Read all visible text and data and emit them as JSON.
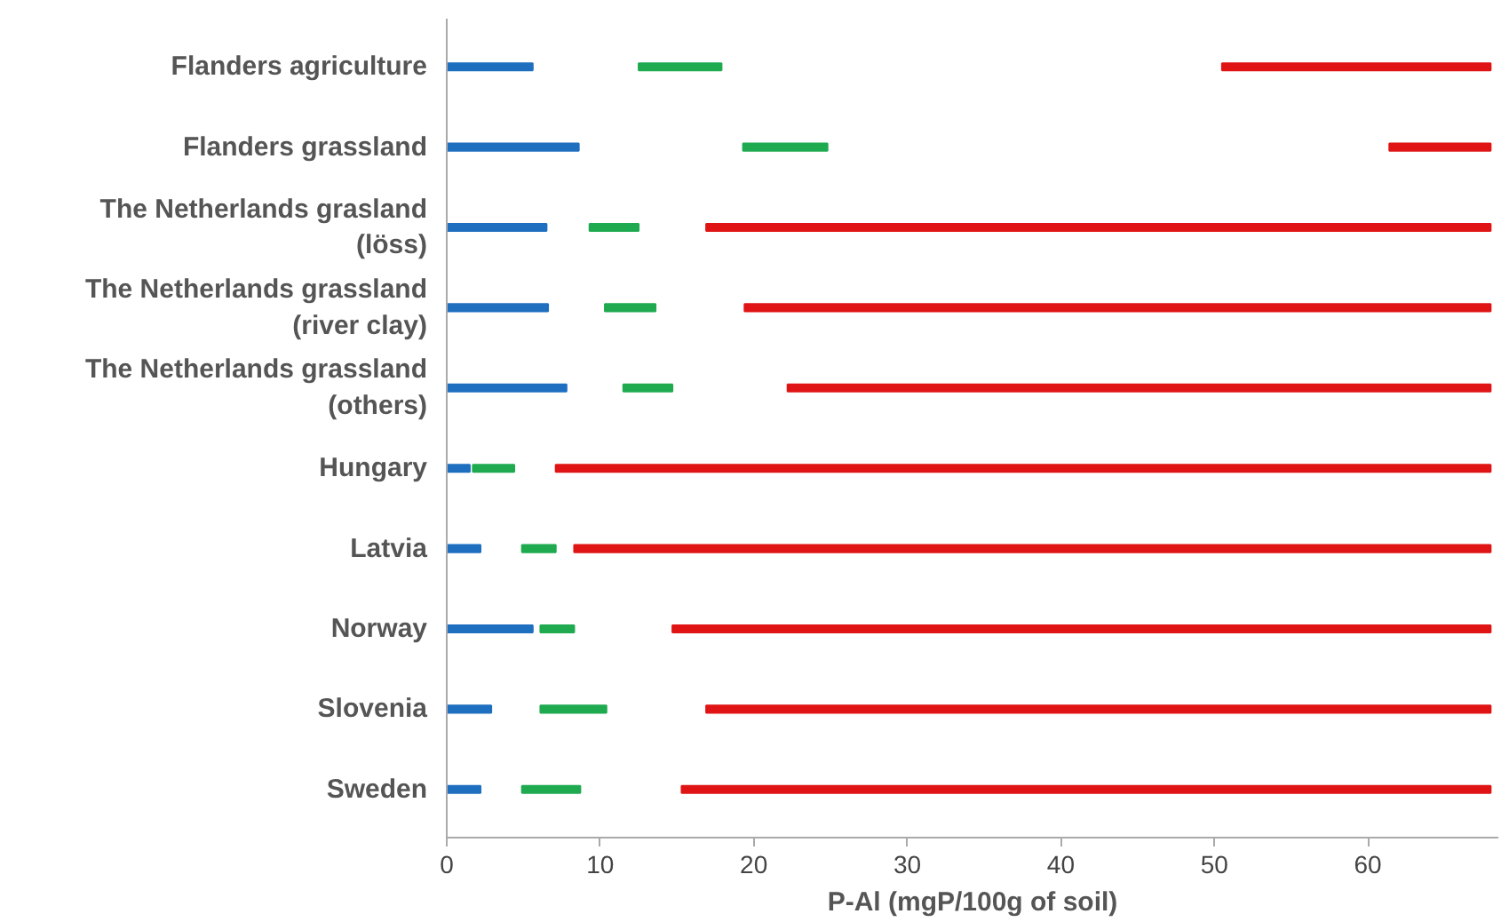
{
  "chart_data": {
    "type": "bar",
    "orientation": "horizontal",
    "xlabel": "P-Al (mgP/100g of soil)",
    "categories": [
      "Flanders agriculture",
      "Flanders grassland",
      "The Netherlands grasland\n(löss)",
      "The Netherlands grassland\n(river clay)",
      "The Netherlands grassland\n(others)",
      "Hungary",
      "Latvia",
      "Norway",
      "Slovenia",
      "Sweden"
    ],
    "series": [
      {
        "color": "#1f6fc0",
        "base": [
          0,
          0,
          0,
          0,
          0,
          0,
          0,
          0,
          0,
          0
        ],
        "values": [
          5.6,
          8.6,
          6.5,
          6.6,
          7.8,
          1.5,
          2.2,
          5.6,
          2.9,
          2.2
        ]
      },
      {
        "color": "#1faa50",
        "base": [
          12.5,
          19.3,
          9.3,
          10.3,
          11.5,
          1.7,
          4.9,
          6.1,
          6.1,
          4.9
        ],
        "values": [
          5.4,
          5.5,
          3.2,
          3.3,
          3.2,
          2.7,
          2.2,
          2.2,
          4.3,
          3.8
        ]
      },
      {
        "color": "#e01414",
        "base": [
          50.5,
          61.4,
          16.9,
          19.4,
          22.2,
          7.1,
          8.3,
          14.7,
          16.9,
          15.3
        ],
        "values": [
          17.5,
          6.6,
          51.1,
          48.6,
          45.8,
          60.9,
          59.7,
          53.3,
          51.1,
          52.7
        ]
      }
    ],
    "xlim": [
      0,
      68.5
    ],
    "xticks": [
      0,
      10,
      20,
      30,
      40,
      50,
      60
    ],
    "grid": false
  }
}
